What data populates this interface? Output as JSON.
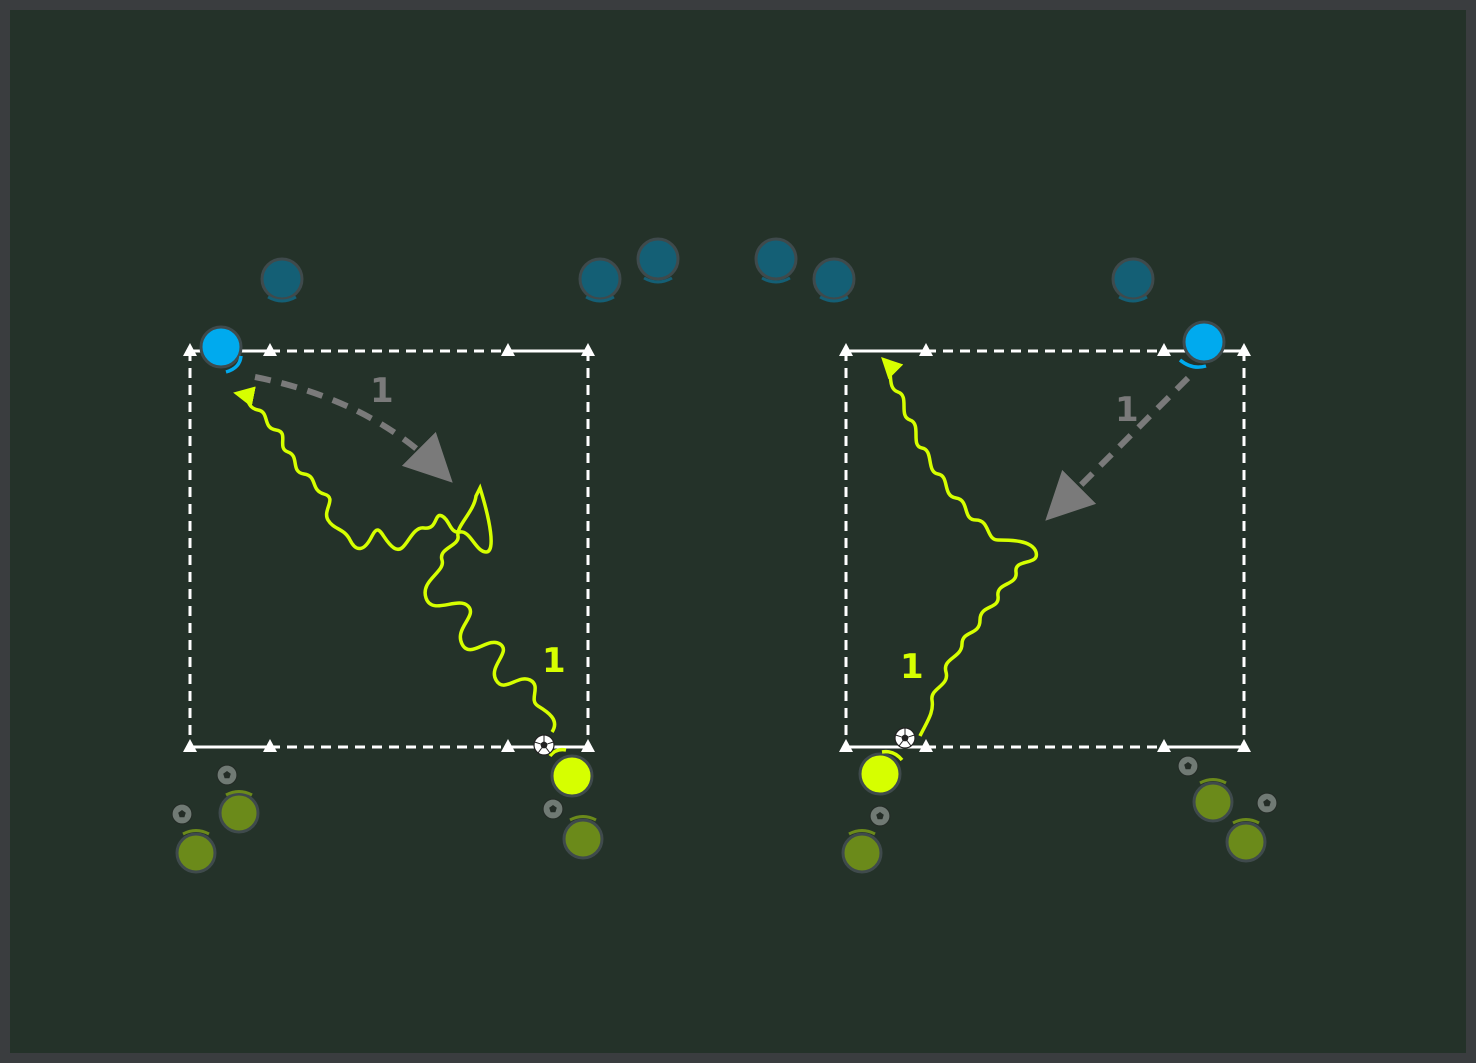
{
  "diagram": {
    "colors": {
      "pitch": "#243229",
      "frame": "#3a3d3f",
      "field_line": "#ffffff",
      "attacker_active": "#d6ff00",
      "attacker_waiting": "#6b8a1a",
      "defender_active": "#00aaee",
      "defender_waiting": "#145f75",
      "pass_arrow": "#7a7a7a",
      "dribble_line": "#d6ff00"
    },
    "labels": {
      "left_pass": "1",
      "left_dribble": "1",
      "right_pass": "1",
      "right_dribble": "1"
    },
    "icons": [
      "cone-icon",
      "ball-icon",
      "player-icon"
    ]
  }
}
